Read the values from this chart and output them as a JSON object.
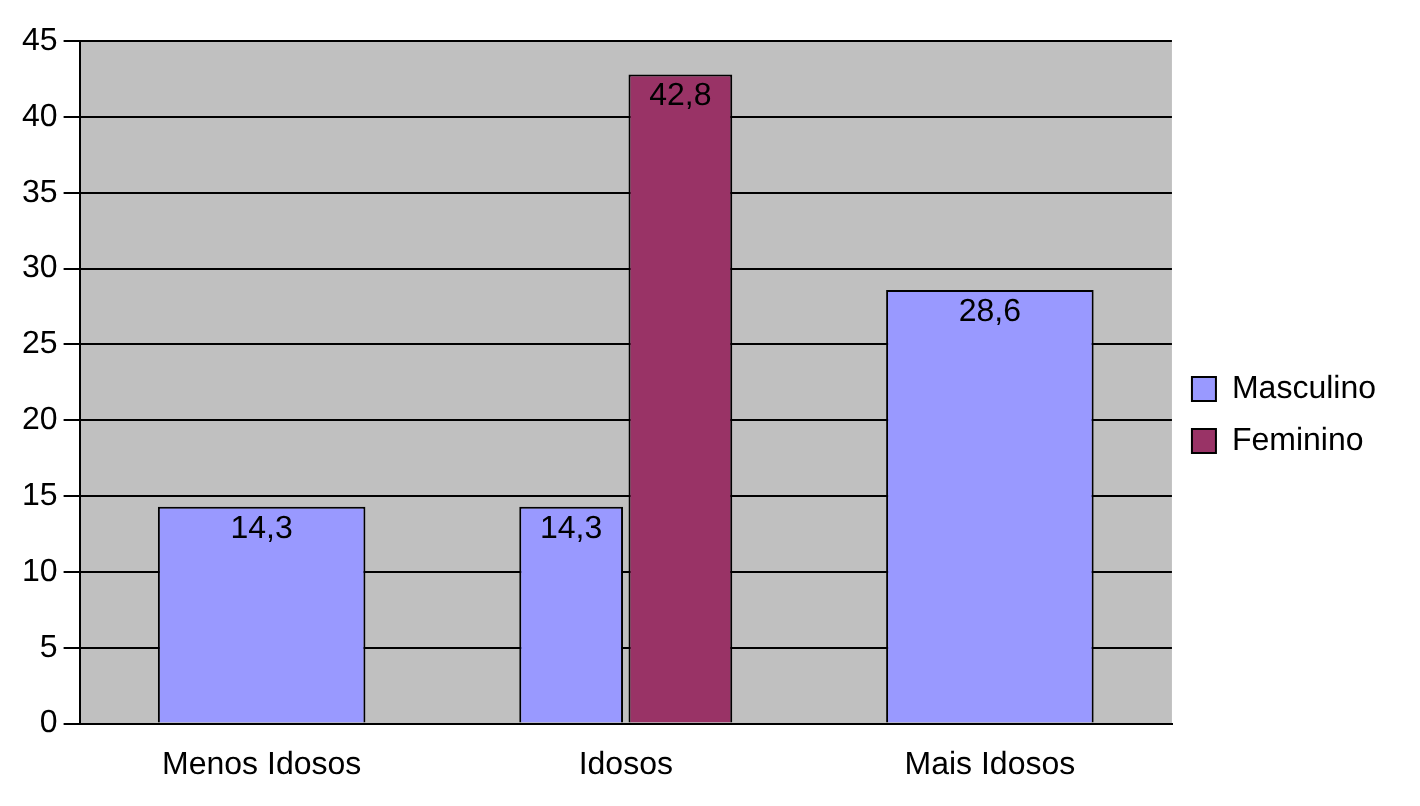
{
  "chart_data": {
    "type": "bar",
    "categories": [
      "Menos Idosos",
      "Idosos",
      "Mais Idosos"
    ],
    "series": [
      {
        "name": "Masculino",
        "color": "#9999ff",
        "values": [
          14.3,
          14.3,
          28.6
        ],
        "value_labels": [
          "14,3",
          "14,3",
          "28,6"
        ]
      },
      {
        "name": "Feminino",
        "color": "#993366",
        "values": [
          null,
          42.8,
          null
        ],
        "value_labels": [
          null,
          "42,8",
          null
        ]
      }
    ],
    "ylim": [
      0,
      45
    ],
    "yticks": [
      0,
      5,
      10,
      15,
      20,
      25,
      30,
      35,
      40,
      45
    ],
    "grid": "y",
    "legend": "right"
  }
}
